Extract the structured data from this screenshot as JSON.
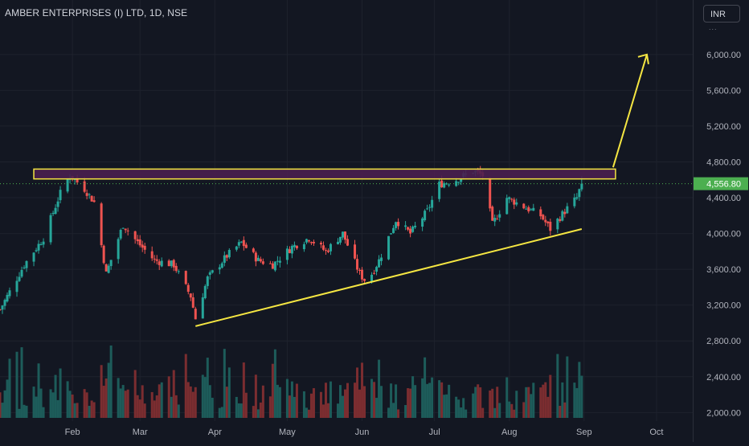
{
  "header": {
    "title": "AMBER ENTERPRISES (I) LTD, 1D, NSE",
    "currency_button": "INR",
    "more_dots": "..."
  },
  "colors": {
    "background": "#131722",
    "up": "#26a69a",
    "down": "#ef5350",
    "up_volume": "#1d5c5a",
    "down_volume": "#7b2d30",
    "annotation": "#f5e642",
    "price_label": "#4caf50",
    "grid": "#1e222d"
  },
  "chart_data": {
    "type": "candlestick",
    "title": "AMBER ENTERPRISES (I) LTD, 1D, NSE",
    "x_ticks": [
      "Feb",
      "Mar",
      "Apr",
      "May",
      "Jun",
      "Jul",
      "Aug",
      "Sep",
      "Oct"
    ],
    "y_ticks": [
      "6,000.00",
      "5,600.00",
      "5,200.00",
      "4,800.00",
      "4,400.00",
      "4,000.00",
      "3,600.00",
      "3,200.00",
      "2,800.00",
      "2,400.00",
      "2,000.00"
    ],
    "y_range": [
      1940,
      6250
    ],
    "last_price": 4556.8,
    "last_price_label": "4,556.80",
    "date_range": [
      "2023-01-02",
      "2023-10-16"
    ],
    "key_points": [
      {
        "date": "2023-01-02",
        "close": 3150
      },
      {
        "date": "2023-01-12",
        "close": 3650
      },
      {
        "date": "2023-01-20",
        "close": 3950
      },
      {
        "date": "2023-01-27",
        "close": 4450
      },
      {
        "date": "2023-01-31",
        "close": 4650
      },
      {
        "date": "2023-02-06",
        "close": 4500
      },
      {
        "date": "2023-02-10",
        "close": 4350
      },
      {
        "date": "2023-02-15",
        "close": 3550
      },
      {
        "date": "2023-02-22",
        "close": 4100
      },
      {
        "date": "2023-02-28",
        "close": 3900
      },
      {
        "date": "2023-03-07",
        "close": 3700
      },
      {
        "date": "2023-03-15",
        "close": 3650
      },
      {
        "date": "2023-03-22",
        "close": 3300
      },
      {
        "date": "2023-03-24",
        "close": 3050
      },
      {
        "date": "2023-03-29",
        "close": 3500
      },
      {
        "date": "2023-04-06",
        "close": 3750
      },
      {
        "date": "2023-04-12",
        "close": 3900
      },
      {
        "date": "2023-04-19",
        "close": 3700
      },
      {
        "date": "2023-04-25",
        "close": 3650
      },
      {
        "date": "2023-05-03",
        "close": 3850
      },
      {
        "date": "2023-05-10",
        "close": 3950
      },
      {
        "date": "2023-05-17",
        "close": 3800
      },
      {
        "date": "2023-05-24",
        "close": 4000
      },
      {
        "date": "2023-05-31",
        "close": 3550
      },
      {
        "date": "2023-06-03",
        "close": 3450
      },
      {
        "date": "2023-06-08",
        "close": 3700
      },
      {
        "date": "2023-06-15",
        "close": 4150
      },
      {
        "date": "2023-06-21",
        "close": 4000
      },
      {
        "date": "2023-06-28",
        "close": 4250
      },
      {
        "date": "2023-07-03",
        "close": 4550
      },
      {
        "date": "2023-07-10",
        "close": 4600
      },
      {
        "date": "2023-07-17",
        "close": 4700
      },
      {
        "date": "2023-07-21",
        "close": 4650
      },
      {
        "date": "2023-07-25",
        "close": 4100
      },
      {
        "date": "2023-07-31",
        "close": 4400
      },
      {
        "date": "2023-08-07",
        "close": 4300
      },
      {
        "date": "2023-08-14",
        "close": 4200
      },
      {
        "date": "2023-08-18",
        "close": 4050
      },
      {
        "date": "2023-08-24",
        "close": 4250
      },
      {
        "date": "2023-08-29",
        "close": 4400
      },
      {
        "date": "2023-08-31",
        "close": 4556.8
      }
    ],
    "volume_series": {
      "color_up": "#1d5c5a",
      "color_down": "#7b2d30"
    }
  }
}
